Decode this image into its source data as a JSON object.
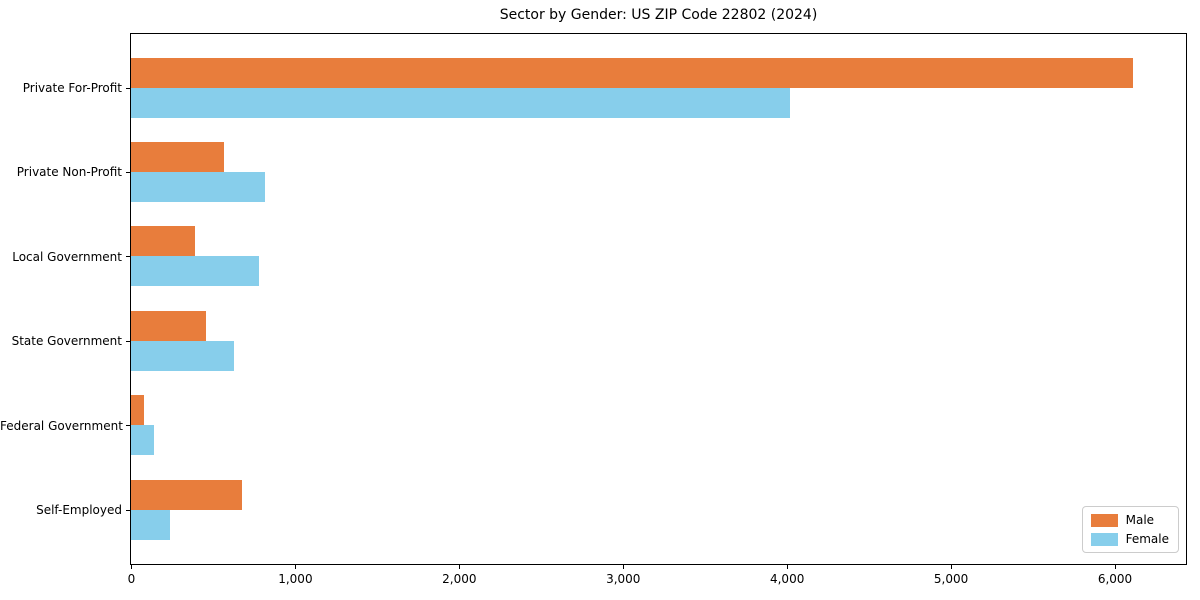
{
  "chart_data": {
    "type": "bar",
    "orientation": "horizontal",
    "title": "Sector by Gender: US ZIP Code 22802 (2024)",
    "categories": [
      "Private For-Profit",
      "Private Non-Profit",
      "Local Government",
      "State Government",
      "Federal Government",
      "Self-Employed"
    ],
    "series": [
      {
        "name": "Male",
        "color": "#e87d3c",
        "values": [
          6110,
          570,
          390,
          460,
          80,
          680
        ]
      },
      {
        "name": "Female",
        "color": "#87ceeb",
        "values": [
          4020,
          820,
          780,
          630,
          140,
          235
        ]
      }
    ],
    "xlabel": "",
    "ylabel": "",
    "xlim": [
      0,
      6430
    ],
    "xticks": [
      0,
      1000,
      2000,
      3000,
      4000,
      5000,
      6000
    ],
    "xtick_labels": [
      "0",
      "1,000",
      "2,000",
      "3,000",
      "4,000",
      "5,000",
      "6,000"
    ],
    "legend_position": "lower right",
    "grid": false,
    "axis_color": "#000000",
    "background_color": "#ffffff"
  }
}
